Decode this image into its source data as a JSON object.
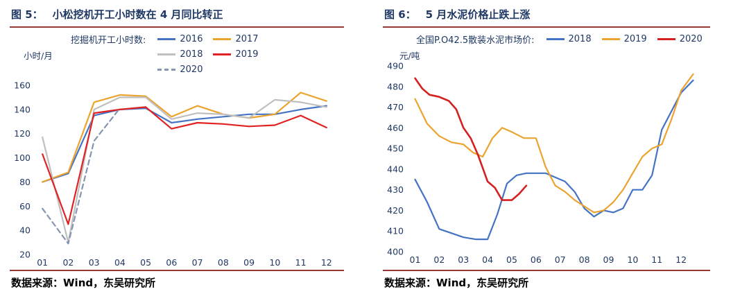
{
  "page": {
    "background": "#ffffff",
    "rule_color": "#953735"
  },
  "panels": [
    {
      "title_label": "图 5：",
      "title_text": "小松挖机开工小时数在 4 月同比转正",
      "source": "数据来源：Wind，东吴研究所"
    },
    {
      "title_label": "图 6：",
      "title_text": "5 月水泥价格止跌上涨",
      "source": "数据来源：Wind，东吴研究所"
    }
  ],
  "chart_data": [
    {
      "type": "line",
      "title": "小松挖机开工小时数在 4 月同比转正",
      "legend_title": "挖掘机开工小时数:",
      "legend_position": "top",
      "ylabel": "小时/月",
      "xlabel": "",
      "grid": false,
      "ylim": [
        20,
        160
      ],
      "yticks": [
        20,
        40,
        60,
        80,
        100,
        120,
        140,
        160
      ],
      "xlim": [
        0.7,
        12.3
      ],
      "xticks": [
        1,
        2,
        3,
        4,
        5,
        6,
        7,
        8,
        9,
        10,
        11,
        12
      ],
      "xtick_labels": [
        "01",
        "02",
        "03",
        "04",
        "05",
        "06",
        "07",
        "08",
        "09",
        "10",
        "11",
        "12"
      ],
      "legend_rows": [
        [
          0,
          1
        ],
        [
          2,
          3
        ],
        [
          4
        ]
      ],
      "series": [
        {
          "name": "2016",
          "color": "#4472C4",
          "dash": false,
          "width": 2.2,
          "x": [
            1,
            2,
            3,
            4,
            5,
            6,
            7,
            8,
            9,
            10,
            11,
            12
          ],
          "values": [
            80,
            87,
            135,
            140,
            141,
            129,
            132,
            134,
            136,
            136,
            140,
            143
          ]
        },
        {
          "name": "2017",
          "color": "#ECA32E",
          "dash": false,
          "width": 2.2,
          "x": [
            1,
            2,
            3,
            4,
            5,
            6,
            7,
            8,
            9,
            10,
            11,
            12
          ],
          "values": [
            80,
            88,
            146,
            152,
            151,
            134,
            143,
            136,
            133,
            136,
            154,
            147
          ]
        },
        {
          "name": "2018",
          "color": "#BFBFBF",
          "dash": false,
          "width": 2.2,
          "x": [
            1,
            2,
            3,
            4,
            5,
            6,
            7,
            8,
            9,
            10,
            11,
            12
          ],
          "values": [
            117,
            30,
            140,
            150,
            150,
            132,
            137,
            136,
            133,
            148,
            146,
            142
          ]
        },
        {
          "name": "2019",
          "color": "#E02222",
          "dash": false,
          "width": 2.2,
          "x": [
            1,
            2,
            3,
            4,
            5,
            6,
            7,
            8,
            9,
            10,
            11,
            12
          ],
          "values": [
            103,
            45,
            137,
            140,
            142,
            124,
            129,
            128,
            126,
            127,
            135,
            125
          ]
        },
        {
          "name": "2020",
          "color": "#8496B0",
          "dash": true,
          "width": 2.2,
          "x": [
            1,
            2,
            3,
            4
          ],
          "values": [
            58,
            29,
            114,
            141
          ]
        }
      ]
    },
    {
      "type": "line",
      "title": "5 月水泥价格止跌上涨",
      "legend_title": "全国P.O42.5散装水泥市场价:",
      "legend_position": "top",
      "ylabel": "元/吨",
      "xlabel": "",
      "grid": false,
      "ylim": [
        400,
        490
      ],
      "yticks": [
        400,
        410,
        420,
        430,
        440,
        450,
        460,
        470,
        480,
        490
      ],
      "xlim": [
        0.7,
        12.8
      ],
      "xticks": [
        1,
        2,
        3,
        4,
        5,
        6,
        7,
        8,
        9,
        10,
        11,
        12
      ],
      "xtick_labels": [
        "01",
        "02",
        "03",
        "04",
        "05",
        "06",
        "07",
        "08",
        "09",
        "10",
        "11",
        "12"
      ],
      "legend_rows": [
        [
          0,
          1,
          2
        ]
      ],
      "series": [
        {
          "name": "2018",
          "color": "#4472C4",
          "dash": false,
          "width": 2.2,
          "x": [
            1,
            1.5,
            2,
            2.5,
            3,
            3.5,
            4,
            4.4,
            4.8,
            5.2,
            5.6,
            6,
            6.4,
            6.8,
            7.2,
            7.6,
            8,
            8.4,
            8.8,
            9.2,
            9.6,
            10,
            10.4,
            10.8,
            11.2,
            11.6,
            12,
            12.5
          ],
          "values": [
            435,
            424,
            411,
            409,
            407,
            406,
            406,
            418,
            433,
            437,
            438,
            438,
            438,
            436,
            434,
            429,
            421,
            417,
            420,
            419,
            421,
            430,
            430,
            437,
            459,
            468,
            477,
            483
          ]
        },
        {
          "name": "2019",
          "color": "#ECA32E",
          "dash": false,
          "width": 2.2,
          "x": [
            1,
            1.5,
            2,
            2.5,
            3,
            3.4,
            3.8,
            4.2,
            4.6,
            5,
            5.5,
            6,
            6.4,
            6.8,
            7.2,
            7.6,
            8,
            8.4,
            8.8,
            9.2,
            9.6,
            10,
            10.4,
            10.8,
            11.2,
            11.6,
            12,
            12.5
          ],
          "values": [
            474,
            462,
            456,
            453,
            452,
            448,
            446,
            455,
            460,
            458,
            455,
            455,
            441,
            432,
            429,
            425,
            422,
            419,
            420,
            424,
            430,
            438,
            446,
            450,
            452,
            464,
            478,
            486
          ]
        },
        {
          "name": "2020",
          "color": "#D42020",
          "dash": false,
          "width": 2.6,
          "x": [
            1,
            1.3,
            1.6,
            2,
            2.4,
            2.7,
            3,
            3.3,
            3.6,
            4,
            4.3,
            4.6,
            5,
            5.3,
            5.6
          ],
          "values": [
            484,
            479,
            476,
            475,
            473,
            469,
            460,
            455,
            447,
            434,
            431,
            425,
            425,
            428,
            432
          ]
        }
      ]
    }
  ]
}
